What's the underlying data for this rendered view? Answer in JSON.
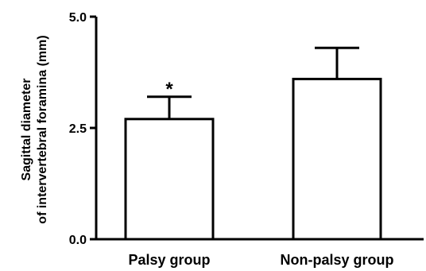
{
  "chart_data": {
    "type": "bar",
    "title": "",
    "xlabel": "",
    "ylabel_lines": [
      "Sagittal diameter",
      "of intervertebral foramina (mm)"
    ],
    "categories": [
      "Palsy group",
      "Non-palsy group"
    ],
    "values": [
      2.7,
      3.6
    ],
    "error_upper": [
      0.5,
      0.7
    ],
    "annotations": [
      "*",
      ""
    ],
    "yticks": [
      0.0,
      2.5,
      5.0
    ],
    "ytick_labels": [
      "0.0",
      "2.5",
      "5.0"
    ],
    "ylim": [
      0,
      5
    ],
    "grid": false,
    "legend": "none",
    "colors": {
      "bar_fill": "#ffffff",
      "bar_stroke": "#000000",
      "axis": "#000000"
    }
  }
}
